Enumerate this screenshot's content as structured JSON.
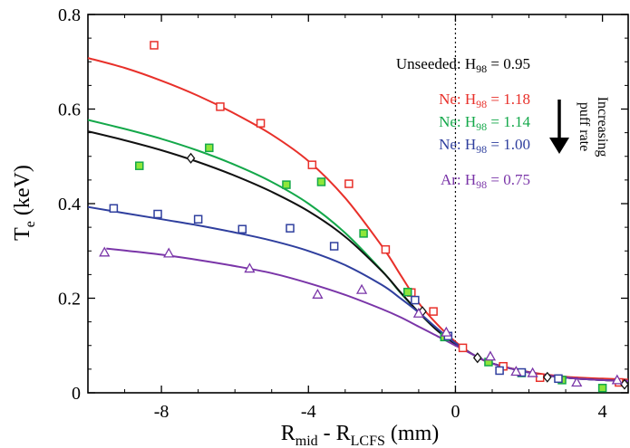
{
  "chart_data": {
    "type": "scatter",
    "title": "",
    "xlabel": {
      "main": "R",
      "sub1": "mid",
      "mid": " - R",
      "sub2": "LCFS",
      "tail": " (mm)"
    },
    "ylabel": {
      "main": "T",
      "sub": "e",
      "tail": " (keV)"
    },
    "xlim": [
      -10,
      4.7
    ],
    "ylim": [
      0,
      0.8
    ],
    "x_ticks": [
      {
        "value": -8,
        "label": "-8"
      },
      {
        "value": -4,
        "label": "-4"
      },
      {
        "value": 0,
        "label": "0"
      },
      {
        "value": 4,
        "label": "4"
      }
    ],
    "y_ticks": [
      {
        "value": 0,
        "label": "0"
      },
      {
        "value": 0.2,
        "label": "0.2"
      },
      {
        "value": 0.4,
        "label": "0.4"
      },
      {
        "value": 0.6,
        "label": "0.6"
      },
      {
        "value": 0.8,
        "label": "0.8"
      }
    ],
    "separatrix_x": 0,
    "series": [
      {
        "name": "Ne: H98 = 1.18",
        "legend": {
          "prefix": "Ne: H",
          "sub": "98",
          "value": " = 1.18"
        },
        "color": "#e8302a",
        "marker": "square",
        "marker_fill": "#ffffff",
        "points": [
          [
            -8.2,
            0.735
          ],
          [
            -6.4,
            0.605
          ],
          [
            -5.3,
            0.57
          ],
          [
            -3.9,
            0.482
          ],
          [
            -2.9,
            0.442
          ],
          [
            -1.9,
            0.303
          ],
          [
            -1.2,
            0.212
          ],
          [
            -0.6,
            0.172
          ],
          [
            0.2,
            0.095
          ],
          [
            1.3,
            0.056
          ],
          [
            2.3,
            0.032
          ],
          [
            4.45,
            0.022
          ]
        ],
        "fit": [
          [
            -10,
            0.708
          ],
          [
            -9,
            0.687
          ],
          [
            -8,
            0.66
          ],
          [
            -7,
            0.628
          ],
          [
            -6,
            0.59
          ],
          [
            -5,
            0.546
          ],
          [
            -4,
            0.49
          ],
          [
            -3,
            0.412
          ],
          [
            -2,
            0.31
          ],
          [
            -1.5,
            0.25
          ],
          [
            -1,
            0.19
          ],
          [
            -0.5,
            0.145
          ],
          [
            0,
            0.108
          ],
          [
            0.5,
            0.08
          ],
          [
            1,
            0.062
          ],
          [
            2,
            0.044
          ],
          [
            3,
            0.034
          ],
          [
            4,
            0.03
          ],
          [
            4.7,
            0.028
          ]
        ]
      },
      {
        "name": "Ne: H98 = 1.14",
        "legend": {
          "prefix": "Ne: H",
          "sub": "98",
          "value": " = 1.14"
        },
        "color": "#14a84a",
        "marker": "square",
        "marker_fill": "#8ee63a",
        "points": [
          [
            -8.6,
            0.48
          ],
          [
            -6.7,
            0.518
          ],
          [
            -4.6,
            0.44
          ],
          [
            -3.65,
            0.446
          ],
          [
            -2.5,
            0.337
          ],
          [
            -1.3,
            0.213
          ],
          [
            -0.3,
            0.118
          ],
          [
            0.9,
            0.065
          ],
          [
            1.8,
            0.042
          ],
          [
            2.9,
            0.027
          ],
          [
            4.0,
            0.01
          ]
        ],
        "fit": [
          [
            -10,
            0.577
          ],
          [
            -9,
            0.558
          ],
          [
            -8,
            0.537
          ],
          [
            -7,
            0.512
          ],
          [
            -6,
            0.482
          ],
          [
            -5,
            0.446
          ],
          [
            -4,
            0.4
          ],
          [
            -3,
            0.338
          ],
          [
            -2,
            0.258
          ],
          [
            -1.5,
            0.212
          ],
          [
            -1,
            0.17
          ],
          [
            -0.5,
            0.132
          ],
          [
            0,
            0.104
          ],
          [
            0.5,
            0.08
          ],
          [
            1,
            0.062
          ],
          [
            2,
            0.043
          ],
          [
            3,
            0.032
          ],
          [
            4,
            0.027
          ],
          [
            4.7,
            0.025
          ]
        ]
      },
      {
        "name": "Unseeded: H98 = 0.95",
        "legend": {
          "prefix": "Unseeded: H",
          "sub": "98",
          "value": " = 0.95"
        },
        "color": "#111111",
        "marker": "diamond",
        "marker_fill": "#ffffff",
        "points": [
          [
            -7.2,
            0.496
          ],
          [
            -0.9,
            0.172
          ],
          [
            0.6,
            0.074
          ],
          [
            2.5,
            0.033
          ],
          [
            4.6,
            0.018
          ]
        ],
        "fit": [
          [
            -10,
            0.553
          ],
          [
            -9,
            0.534
          ],
          [
            -8,
            0.513
          ],
          [
            -7,
            0.488
          ],
          [
            -6,
            0.459
          ],
          [
            -5,
            0.425
          ],
          [
            -4,
            0.384
          ],
          [
            -3,
            0.33
          ],
          [
            -2,
            0.257
          ],
          [
            -1.5,
            0.213
          ],
          [
            -1,
            0.17
          ],
          [
            -0.5,
            0.132
          ],
          [
            0,
            0.103
          ],
          [
            0.5,
            0.08
          ],
          [
            1,
            0.062
          ],
          [
            2,
            0.043
          ],
          [
            3,
            0.032
          ],
          [
            4,
            0.027
          ],
          [
            4.7,
            0.025
          ]
        ]
      },
      {
        "name": "Ne: H98 = 1.00",
        "legend": {
          "prefix": "Ne: H",
          "sub": "98",
          "value": " = 1.00"
        },
        "color": "#2f3f9e",
        "marker": "square",
        "marker_fill": "#ffffff",
        "points": [
          [
            -9.3,
            0.39
          ],
          [
            -8.1,
            0.378
          ],
          [
            -7.0,
            0.367
          ],
          [
            -5.8,
            0.346
          ],
          [
            -4.5,
            0.348
          ],
          [
            -3.3,
            0.31
          ],
          [
            -1.1,
            0.196
          ],
          [
            -0.2,
            0.12
          ],
          [
            1.2,
            0.047
          ],
          [
            1.8,
            0.043
          ],
          [
            2.8,
            0.03
          ]
        ],
        "fit": [
          [
            -10,
            0.393
          ],
          [
            -9,
            0.38
          ],
          [
            -8,
            0.367
          ],
          [
            -7,
            0.354
          ],
          [
            -6,
            0.339
          ],
          [
            -5,
            0.322
          ],
          [
            -4,
            0.3
          ],
          [
            -3,
            0.27
          ],
          [
            -2,
            0.228
          ],
          [
            -1.5,
            0.2
          ],
          [
            -1,
            0.17
          ],
          [
            -0.5,
            0.136
          ],
          [
            0,
            0.105
          ],
          [
            0.5,
            0.08
          ],
          [
            1,
            0.062
          ],
          [
            2,
            0.043
          ],
          [
            3,
            0.032
          ],
          [
            4,
            0.027
          ],
          [
            4.7,
            0.025
          ]
        ]
      },
      {
        "name": "Ar: H98 = 0.75",
        "legend": {
          "prefix": "Ar: H",
          "sub": "98",
          "value": " = 0.75"
        },
        "color": "#7a35a8",
        "marker": "triangle",
        "marker_fill": "#ffffff",
        "points": [
          [
            -9.55,
            0.297
          ],
          [
            -7.8,
            0.295
          ],
          [
            -5.6,
            0.263
          ],
          [
            -3.75,
            0.208
          ],
          [
            -2.55,
            0.218
          ],
          [
            -1.0,
            0.168
          ],
          [
            -0.25,
            0.128
          ],
          [
            0.95,
            0.077
          ],
          [
            1.65,
            0.045
          ],
          [
            2.1,
            0.042
          ],
          [
            3.3,
            0.022
          ],
          [
            4.4,
            0.027
          ]
        ],
        "fit": [
          [
            -9.5,
            0.305
          ],
          [
            -9,
            0.301
          ],
          [
            -8,
            0.292
          ],
          [
            -7,
            0.281
          ],
          [
            -6,
            0.268
          ],
          [
            -5,
            0.253
          ],
          [
            -4,
            0.232
          ],
          [
            -3,
            0.207
          ],
          [
            -2,
            0.177
          ],
          [
            -1.5,
            0.16
          ],
          [
            -1,
            0.14
          ],
          [
            -0.5,
            0.12
          ],
          [
            0,
            0.1
          ],
          [
            0.5,
            0.08
          ],
          [
            1,
            0.062
          ],
          [
            2,
            0.043
          ],
          [
            3,
            0.032
          ],
          [
            4,
            0.027
          ],
          [
            4.7,
            0.025
          ]
        ]
      }
    ],
    "legend_order": [
      2,
      0,
      1,
      3,
      4
    ],
    "annotation": {
      "line1": "Increasing",
      "line2": "puff rate",
      "direction": "down"
    },
    "grid": false
  }
}
